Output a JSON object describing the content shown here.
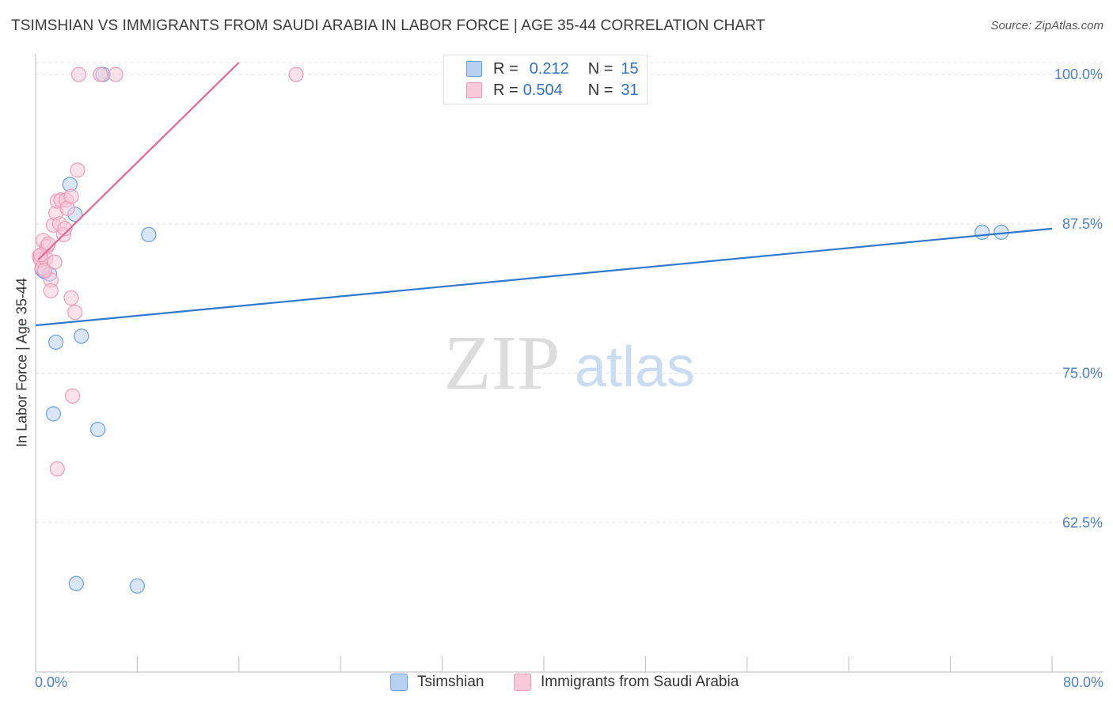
{
  "title": "TSIMSHIAN VS IMMIGRANTS FROM SAUDI ARABIA IN LABOR FORCE | AGE 35-44 CORRELATION CHART",
  "source": "Source: ZipAtlas.com",
  "watermark": {
    "zip": "ZIP",
    "atlas": "atlas"
  },
  "legend": {
    "rows": [
      {
        "r_label": "R =",
        "r_value": "0.212",
        "n_label": "N =",
        "n_value": "15"
      },
      {
        "r_label": "R =",
        "r_value": "0.504",
        "n_label": "N =",
        "n_value": "31"
      }
    ]
  },
  "chart_data": {
    "type": "scatter",
    "title": "TSIMSHIAN VS IMMIGRANTS FROM SAUDI ARABIA IN LABOR FORCE | AGE 35-44 CORRELATION CHART",
    "xlabel": "",
    "ylabel": "In Labor Force | Age 35-44",
    "xlim": [
      0,
      80
    ],
    "ylim": [
      50,
      101
    ],
    "x_tick_labels": [
      "0.0%",
      "80.0%"
    ],
    "y_ticks": [
      62.5,
      75.0,
      87.5,
      100.0
    ],
    "y_tick_labels": [
      "62.5%",
      "75.0%",
      "87.5%",
      "100.0%"
    ],
    "grid": true,
    "legend_position": "top-center",
    "series": [
      {
        "name": "Tsimshian",
        "color": "#6a9fe0",
        "fill": "#b8d1f3",
        "line_color": "#2f78cf",
        "r": 0.212,
        "n": 15,
        "trend": {
          "x": [
            0,
            80
          ],
          "y": [
            79.0,
            87.1
          ]
        },
        "points": [
          {
            "x": 0.5,
            "y": 83.7
          },
          {
            "x": 0.7,
            "y": 83.5
          },
          {
            "x": 1.1,
            "y": 83.3
          },
          {
            "x": 1.6,
            "y": 77.6
          },
          {
            "x": 2.7,
            "y": 90.8
          },
          {
            "x": 3.1,
            "y": 88.3
          },
          {
            "x": 3.6,
            "y": 78.1
          },
          {
            "x": 5.3,
            "y": 100.0
          },
          {
            "x": 1.4,
            "y": 71.6
          },
          {
            "x": 4.9,
            "y": 70.3
          },
          {
            "x": 3.2,
            "y": 57.4
          },
          {
            "x": 8.0,
            "y": 57.2
          },
          {
            "x": 8.9,
            "y": 86.6
          },
          {
            "x": 74.5,
            "y": 86.8
          },
          {
            "x": 76.0,
            "y": 86.8
          }
        ]
      },
      {
        "name": "Immigrants from Saudi Arabia",
        "color": "#ef9ab5",
        "fill": "#f8c9d8",
        "line_color": "#e5668f",
        "r": 0.504,
        "n": 31,
        "trend": {
          "x": [
            0.2,
            16.0
          ],
          "y": [
            84.5,
            101.0
          ]
        },
        "points": [
          {
            "x": 0.3,
            "y": 84.8
          },
          {
            "x": 0.4,
            "y": 84.5
          },
          {
            "x": 0.5,
            "y": 83.8
          },
          {
            "x": 0.6,
            "y": 86.1
          },
          {
            "x": 0.8,
            "y": 84.6
          },
          {
            "x": 0.9,
            "y": 85.6
          },
          {
            "x": 1.0,
            "y": 85.8
          },
          {
            "x": 1.2,
            "y": 82.8
          },
          {
            "x": 1.2,
            "y": 81.9
          },
          {
            "x": 1.4,
            "y": 87.4
          },
          {
            "x": 1.6,
            "y": 88.4
          },
          {
            "x": 1.7,
            "y": 89.4
          },
          {
            "x": 1.9,
            "y": 87.5
          },
          {
            "x": 2.0,
            "y": 89.5
          },
          {
            "x": 2.2,
            "y": 86.6
          },
          {
            "x": 2.3,
            "y": 87.1
          },
          {
            "x": 2.4,
            "y": 89.5
          },
          {
            "x": 2.5,
            "y": 88.8
          },
          {
            "x": 2.8,
            "y": 89.8
          },
          {
            "x": 2.8,
            "y": 81.3
          },
          {
            "x": 3.1,
            "y": 80.1
          },
          {
            "x": 3.3,
            "y": 92.0
          },
          {
            "x": 3.4,
            "y": 100.0
          },
          {
            "x": 5.1,
            "y": 100.0
          },
          {
            "x": 6.3,
            "y": 100.0
          },
          {
            "x": 20.5,
            "y": 100.0
          },
          {
            "x": 2.9,
            "y": 73.1
          },
          {
            "x": 1.7,
            "y": 67.0
          },
          {
            "x": 0.7,
            "y": 83.6
          },
          {
            "x": 1.5,
            "y": 84.3
          },
          {
            "x": 0.4,
            "y": 84.9
          }
        ]
      }
    ]
  }
}
